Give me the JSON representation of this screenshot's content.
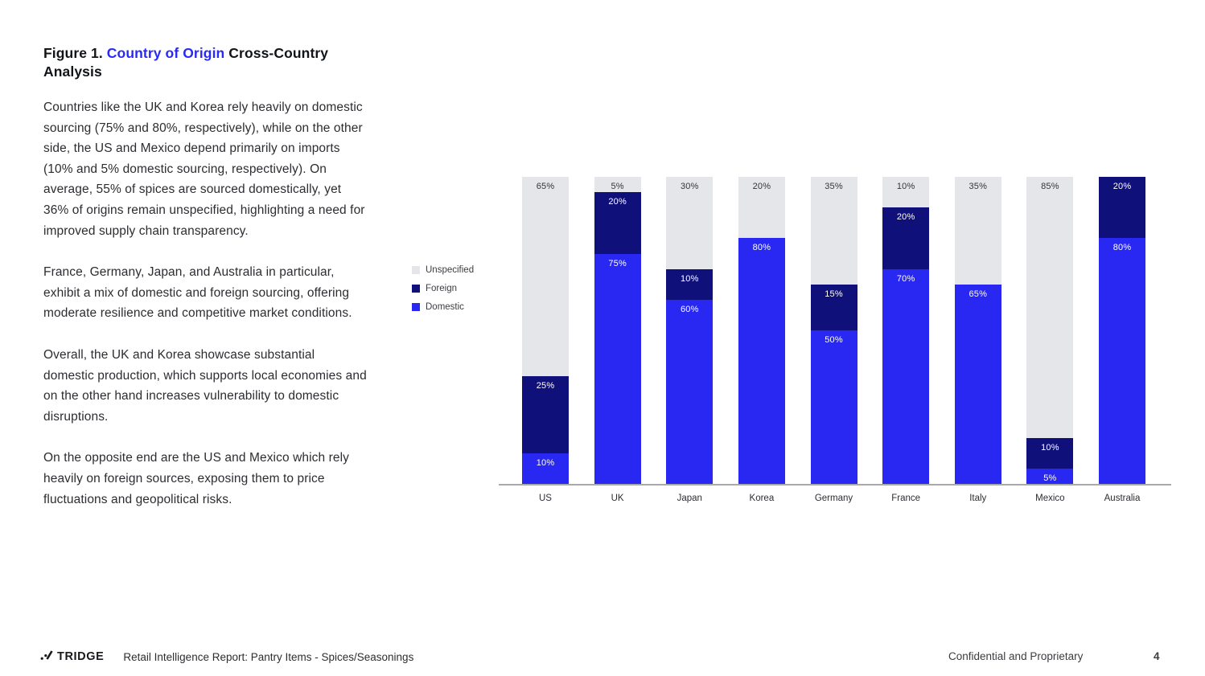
{
  "figure": {
    "title_prefix": "Figure 1. ",
    "title_highlight": "Country of Origin",
    "title_suffix": " Cross-Country Analysis",
    "paragraphs": [
      "Countries like the UK and Korea rely heavily on domestic sourcing (75% and 80%, respectively), while on the other side, the US and Mexico depend primarily on imports (10% and 5% domestic sourcing, respectively). On average, 55% of spices are sourced domestically, yet 36% of origins remain unspecified, highlighting a need for improved supply chain transparency.",
      "France, Germany, Japan, and Australia in particular, exhibit a mix of domestic and foreign sourcing, offering moderate resilience and competitive market conditions.",
      "Overall, the UK and Korea showcase substantial domestic production, which supports local economies and on the other hand increases vulnerability to domestic disruptions.",
      "On the opposite end are the US and Mexico which rely heavily on foreign sources, exposing them to price fluctuations and geopolitical risks."
    ]
  },
  "chart_data": {
    "type": "bar",
    "stacked": true,
    "title": "",
    "xlabel": "",
    "ylabel": "",
    "ylim": [
      0,
      100
    ],
    "value_suffix": "%",
    "grid": false,
    "legend_position": "left",
    "categories": [
      "US",
      "UK",
      "Japan",
      "Korea",
      "Germany",
      "France",
      "Italy",
      "Mexico",
      "Australia"
    ],
    "series": [
      {
        "name": "Domestic",
        "color": "#2828F2",
        "label_color": "#ffffff",
        "values": [
          10,
          75,
          60,
          80,
          50,
          70,
          65,
          5,
          80
        ]
      },
      {
        "name": "Foreign",
        "color": "#10107A",
        "label_color": "#ffffff",
        "values": [
          25,
          20,
          10,
          0,
          15,
          20,
          0,
          10,
          20
        ]
      },
      {
        "name": "Unspecified",
        "color": "#E4E6EA",
        "label_color": "#33353a",
        "values": [
          65,
          5,
          30,
          20,
          35,
          10,
          35,
          85,
          0
        ]
      }
    ],
    "legend_order": [
      "Unspecified",
      "Foreign",
      "Domestic"
    ],
    "axis_color": "#a9a9a9"
  },
  "footer": {
    "logo_text": "TRIDGE",
    "report_title": "Retail Intelligence Report: Pantry Items - Spices/Seasonings",
    "confidential": "Confidential and Proprietary",
    "page_number": "4"
  },
  "colors": {
    "accent": "#2A2AF5",
    "body_text": "#2b2d31"
  }
}
